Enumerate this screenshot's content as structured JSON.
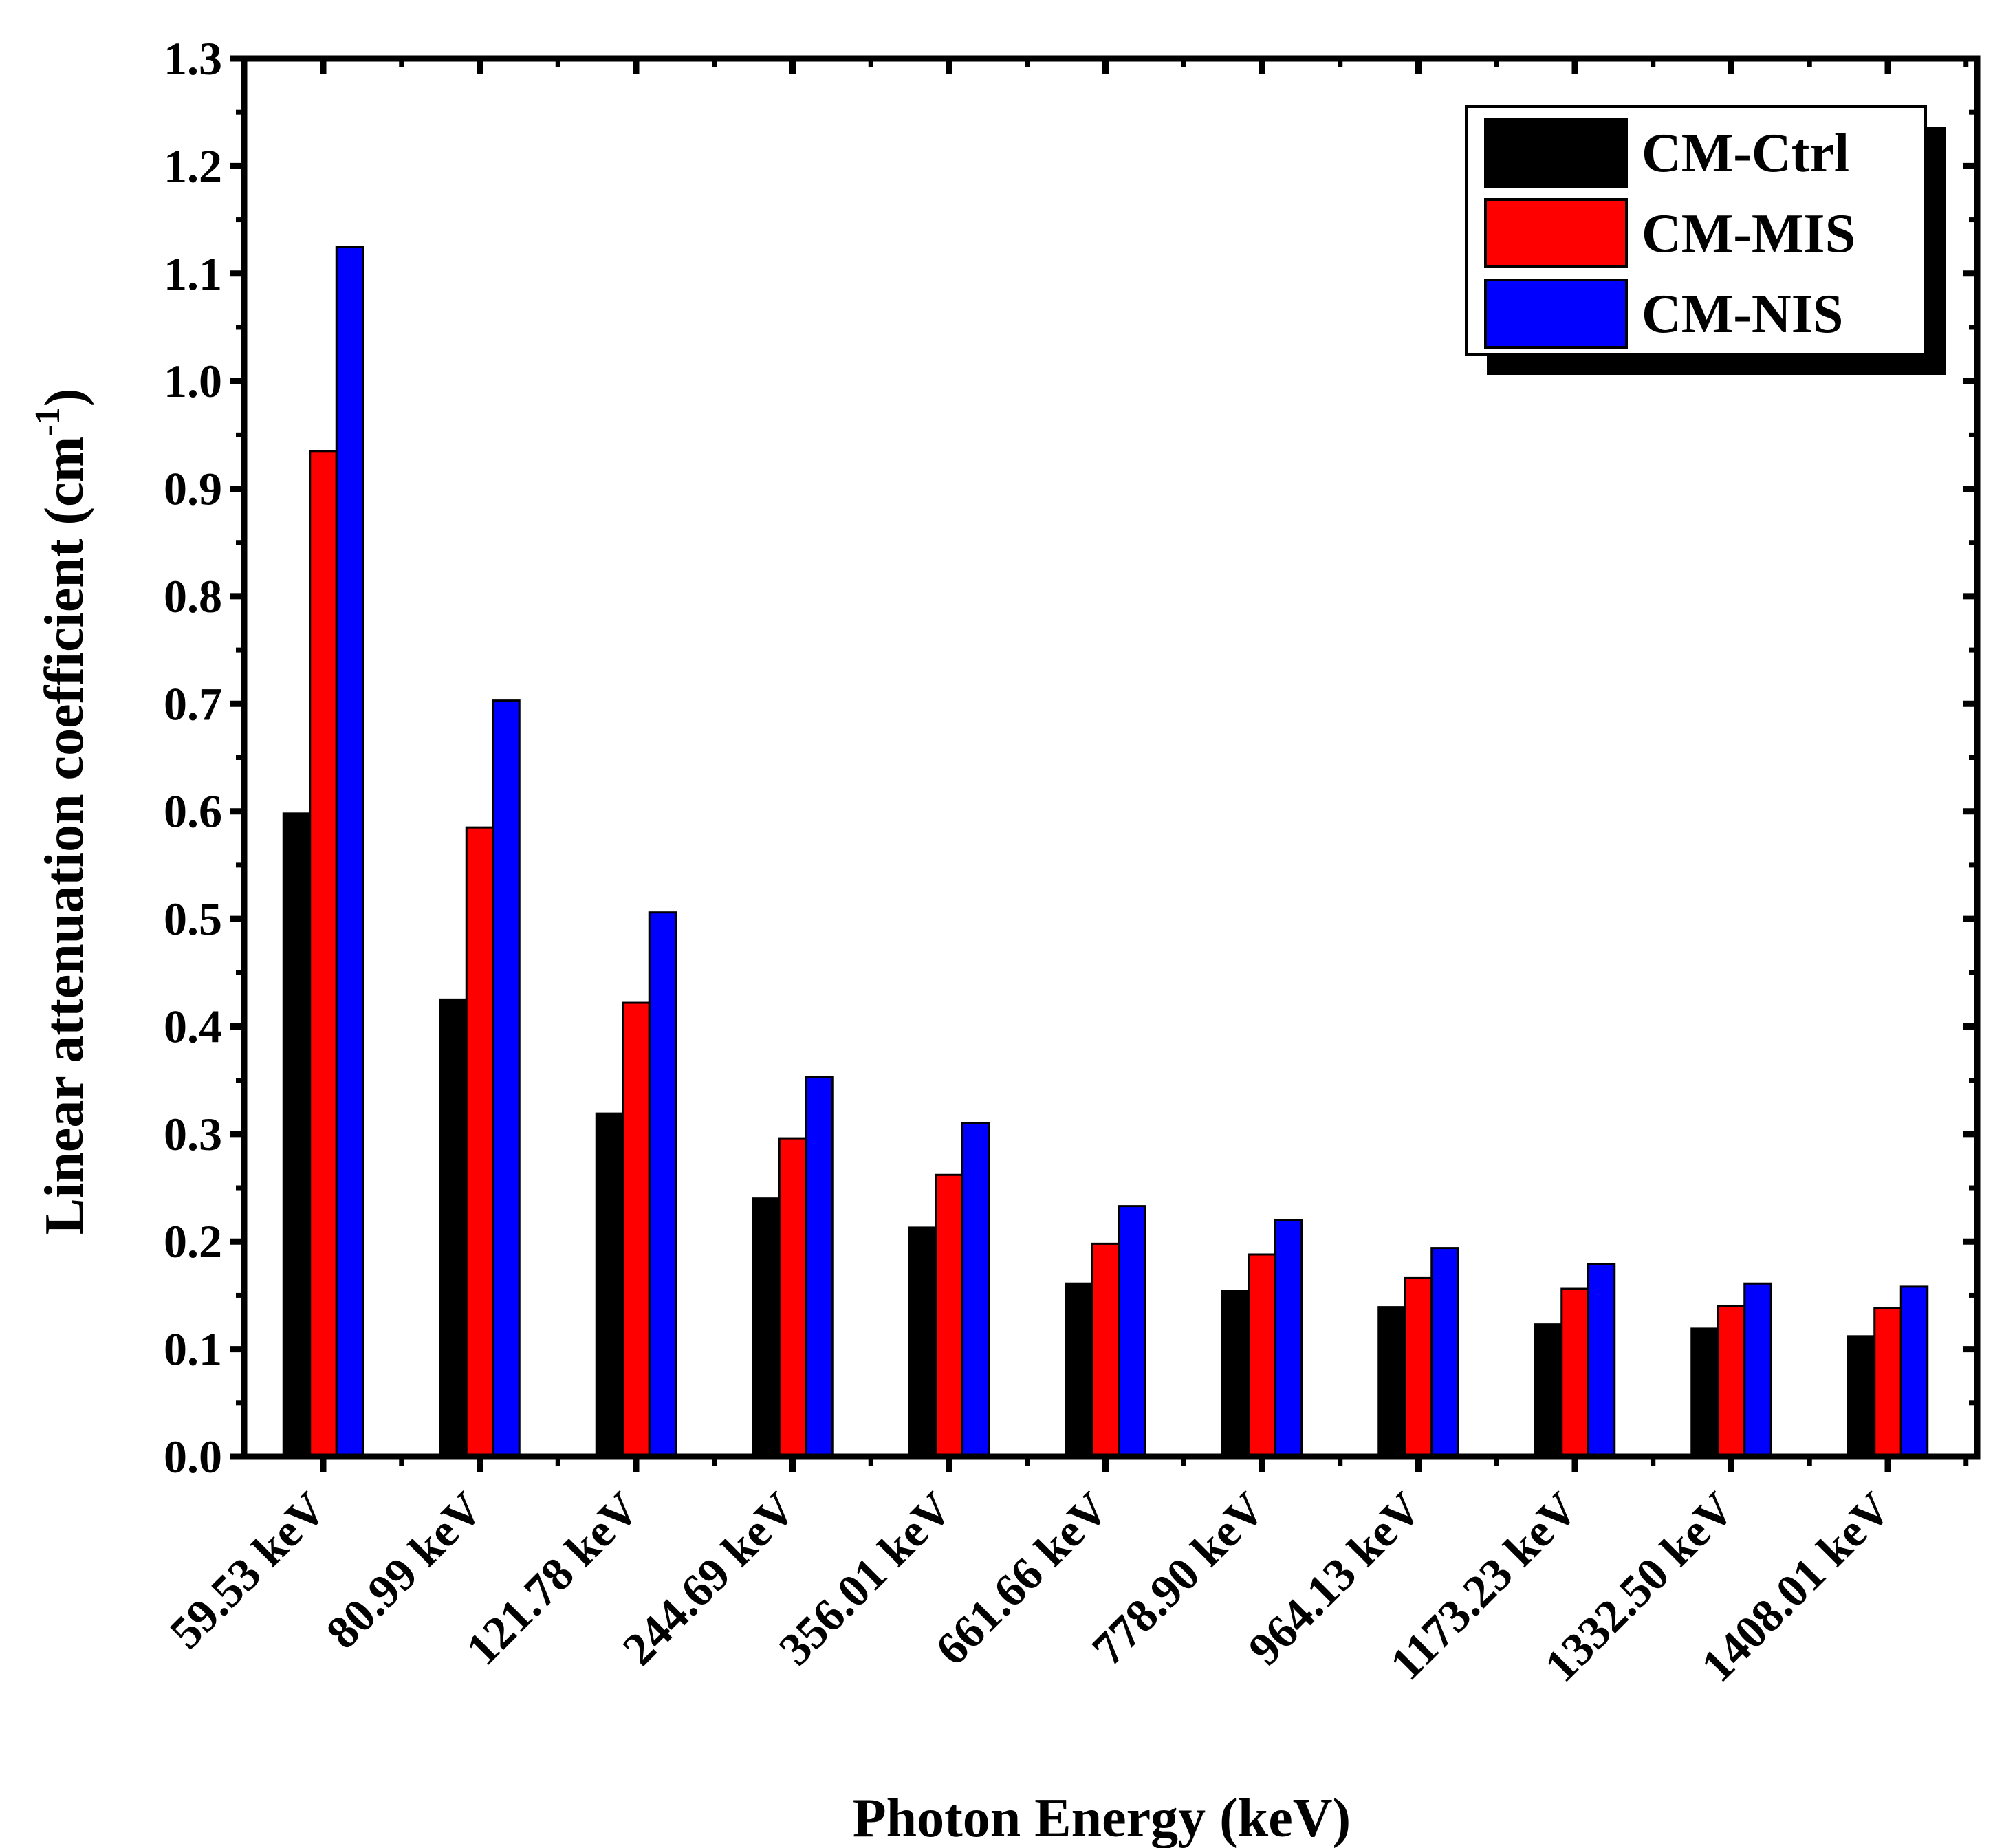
{
  "chart_data": {
    "type": "bar",
    "title": "",
    "xlabel": "Photon Energy (keV)",
    "ylabel_main": "Linear attenuation coefficient (cm",
    "ylabel_sup": "-1",
    "ylabel_close": ")",
    "ylim": [
      0.0,
      1.3
    ],
    "yticks": [
      "0.0",
      "0.1",
      "0.2",
      "0.3",
      "0.4",
      "0.5",
      "0.6",
      "0.7",
      "0.8",
      "0.9",
      "1.0",
      "1.1",
      "1.2",
      "1.3"
    ],
    "categories": [
      "59.53 keV",
      "80.99 keV",
      "121.78 keV",
      "244.69 keV",
      "356.01 keV",
      "661.66 keV",
      "778.90 keV",
      "964.13 keV",
      "1173.23 keV",
      "1332.50 keV",
      "1408.01 keV"
    ],
    "series": [
      {
        "name": "CM-Ctrl",
        "color": "#000000",
        "values": [
          0.598,
          0.425,
          0.319,
          0.24,
          0.213,
          0.161,
          0.154,
          0.139,
          0.123,
          0.119,
          0.112
        ]
      },
      {
        "name": "CM-MIS",
        "color": "#ff0000",
        "values": [
          0.935,
          0.585,
          0.422,
          0.296,
          0.262,
          0.198,
          0.188,
          0.166,
          0.156,
          0.14,
          0.138
        ]
      },
      {
        "name": "CM-NIS",
        "color": "#0000ff",
        "values": [
          1.125,
          0.703,
          0.506,
          0.353,
          0.31,
          0.233,
          0.22,
          0.194,
          0.179,
          0.161,
          0.158
        ]
      }
    ],
    "legend_position": "top-right",
    "grid": false
  }
}
